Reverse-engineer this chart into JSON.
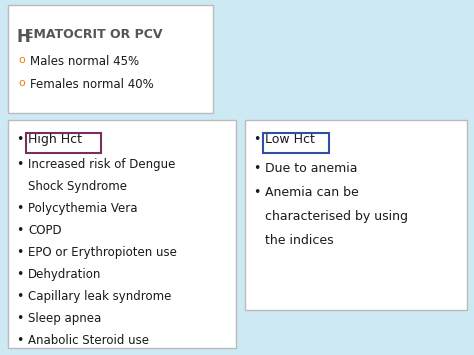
{
  "bg_color": "#cdeaf4",
  "orange_bullet_color": "#e8820a",
  "bullet_items_top": [
    "Males normal 45%",
    "Females normal 40%"
  ],
  "high_hct_header": "High Hct",
  "high_hct_header_box_color": "#7b2d5e",
  "high_hct_items": [
    "Increased risk of Dengue",
    "Shock Syndrome",
    "Polycythemia Vera",
    "COPD",
    "EPO or Erythropioten use",
    "Dehydration",
    "Capillary leak syndrome",
    "Sleep apnea",
    "Anabolic Steroid use"
  ],
  "high_hct_indent": [
    false,
    true,
    false,
    false,
    false,
    false,
    false,
    false,
    false
  ],
  "low_hct_header": "Low Hct",
  "low_hct_header_box_color": "#2e4fa3",
  "low_hct_items": [
    "Due to anemia",
    "Anemia can be",
    "characterised by using",
    "the indices"
  ],
  "low_hct_indent": [
    false,
    false,
    true,
    true
  ],
  "box_bg": "#ffffff",
  "box_border": "#bbbbbb",
  "text_color": "#1a1a1a",
  "title_color": "#555555"
}
